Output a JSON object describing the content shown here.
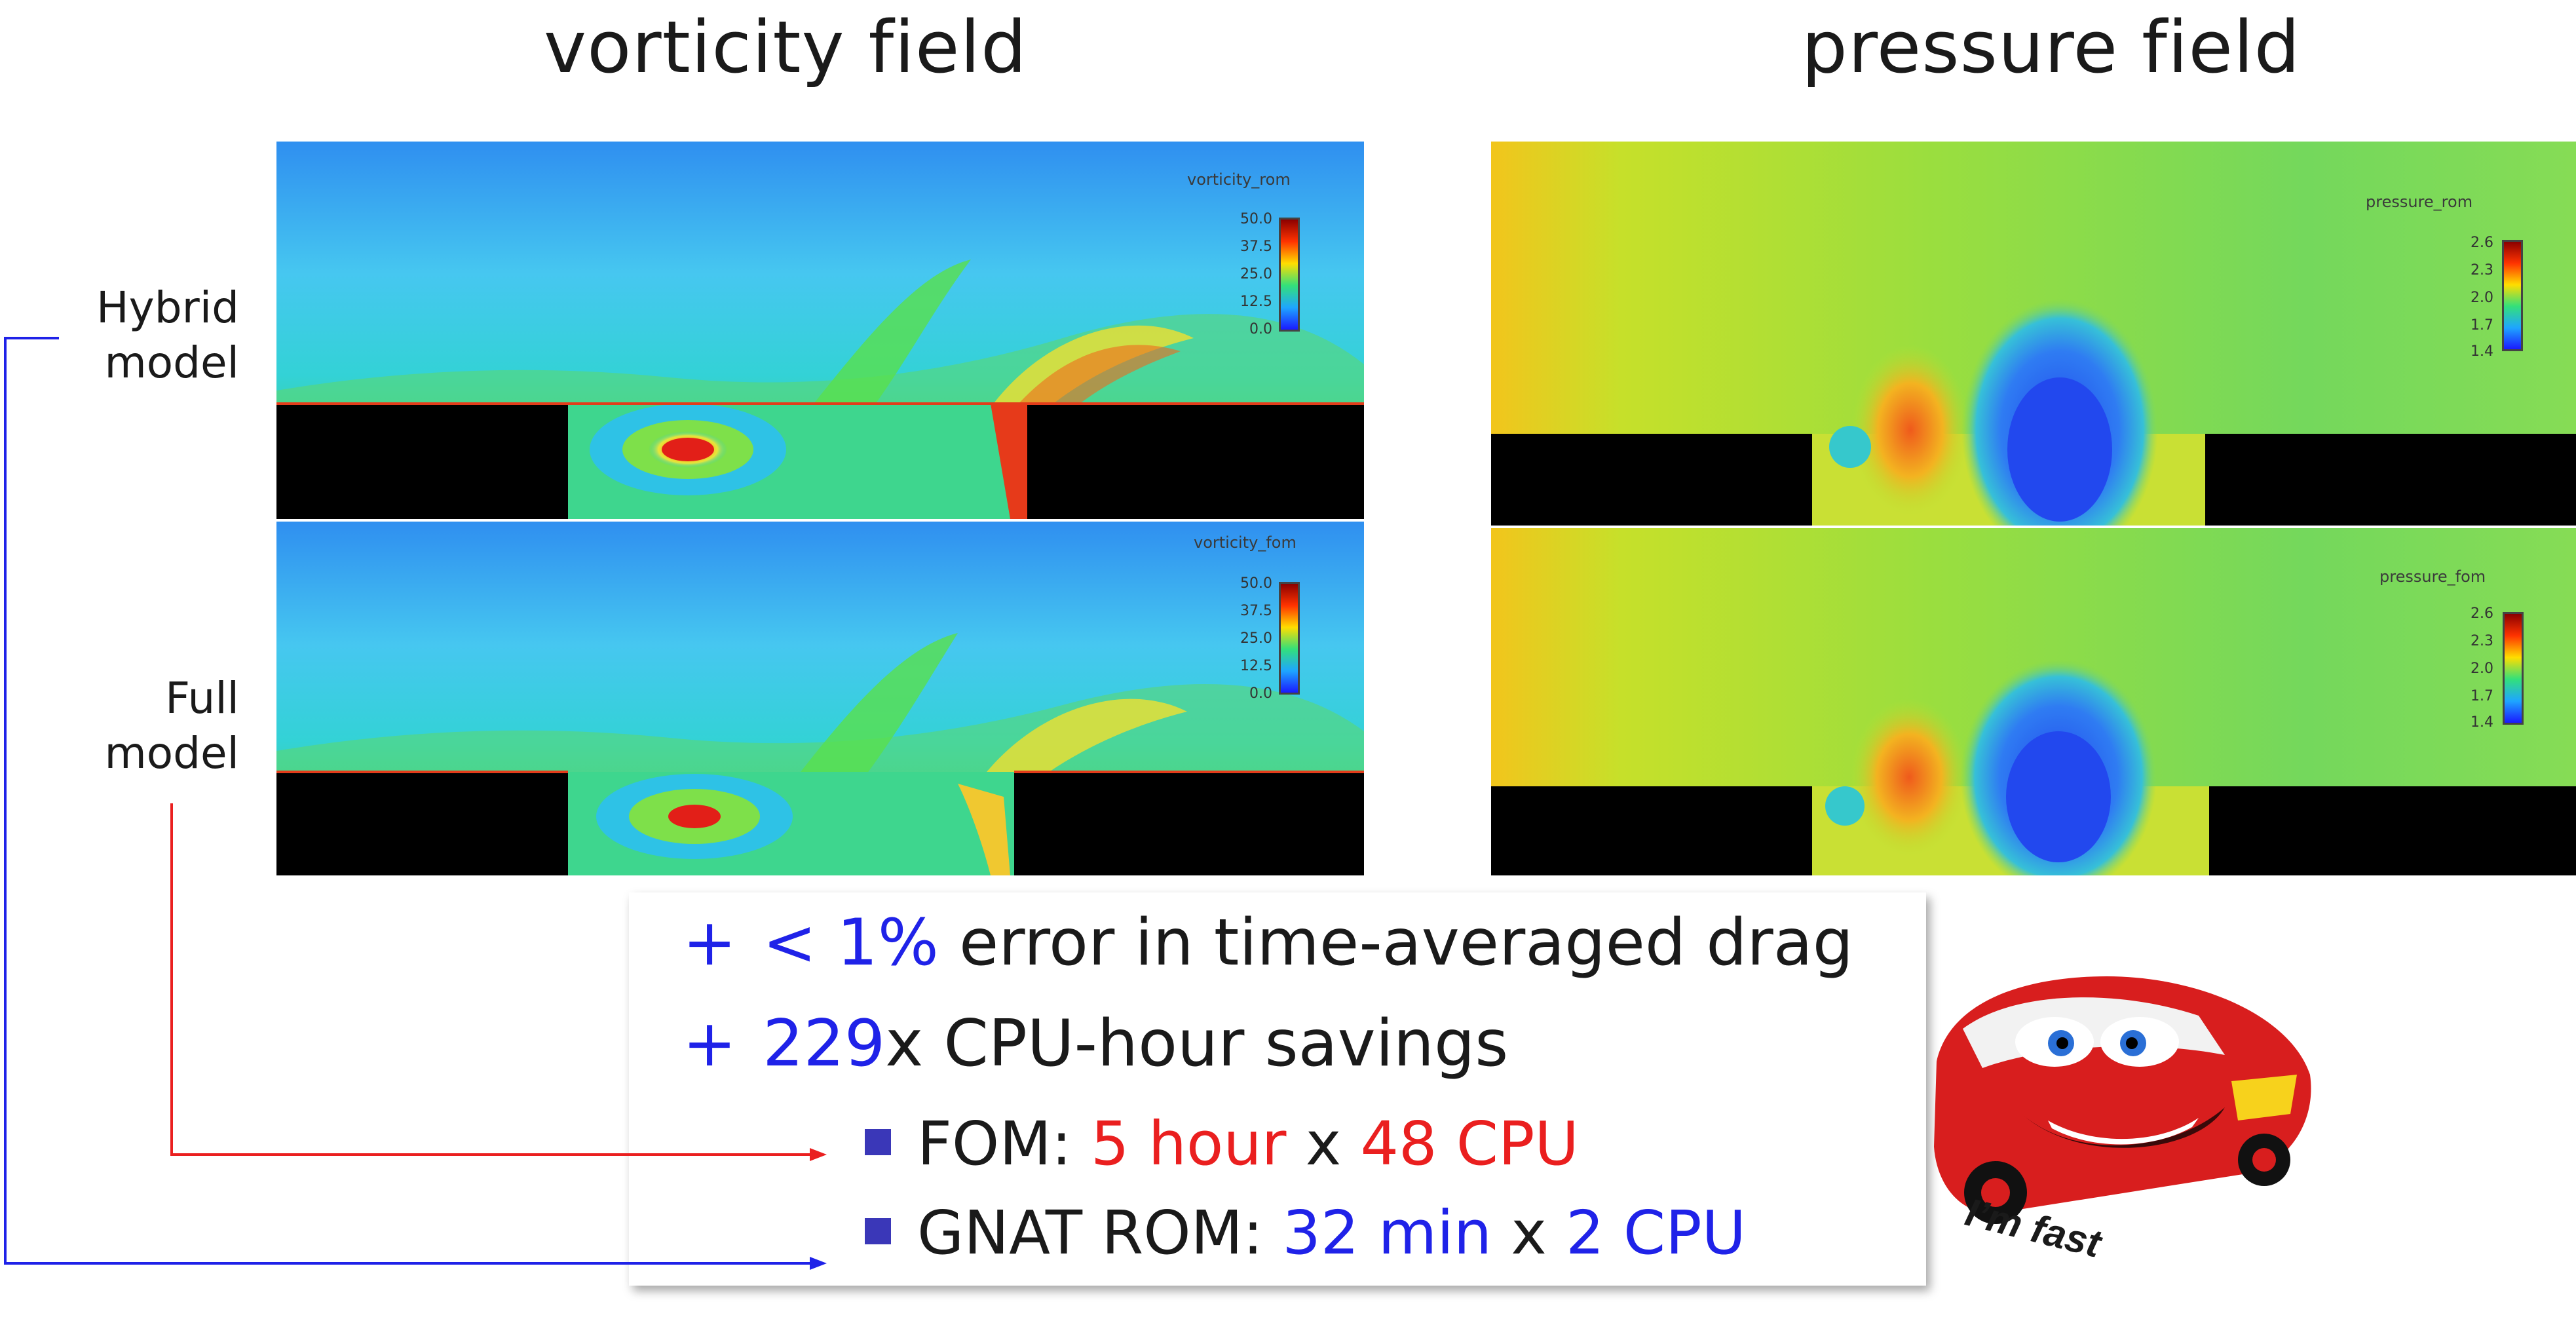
{
  "titles": {
    "left": "vorticity field",
    "right": "pressure field"
  },
  "row_labels": {
    "hybrid": [
      "Hybrid",
      "model"
    ],
    "full": [
      "Full",
      "model"
    ]
  },
  "colorbars": {
    "vorticity_rom": {
      "title": "vorticity_rom",
      "ticks": [
        "50.0",
        "37.5",
        "25.0",
        "12.5",
        "0.0"
      ]
    },
    "vorticity_fom": {
      "title": "vorticity_fom",
      "ticks": [
        "50.0",
        "37.5",
        "25.0",
        "12.5",
        "0.0"
      ]
    },
    "pressure_rom": {
      "title": "pressure_rom",
      "ticks": [
        "2.6",
        "2.3",
        "2.0",
        "1.7",
        "1.4"
      ]
    },
    "pressure_fom": {
      "title": "pressure_fom",
      "ticks": [
        "2.6",
        "2.3",
        "2.0",
        "1.7",
        "1.4"
      ]
    }
  },
  "summary": {
    "plus_symbol": "+",
    "line1": {
      "highlight": "< 1%",
      "rest": "error in time-averaged drag"
    },
    "line2": {
      "highlight": "229",
      "rest": "x CPU-hour savings"
    },
    "fom": {
      "label": "FOM:",
      "time": "5 hour",
      "times": "x",
      "cpu": "48 CPU"
    },
    "rom": {
      "label": "GNAT ROM:",
      "time": "32 min",
      "times": "x",
      "cpu": "2 CPU"
    }
  },
  "caption": "I’m fast",
  "colors": {
    "blue_text": "#1f22e8",
    "red_text": "#ea1f1f",
    "arrow_blue": "#1f22e8",
    "arrow_red": "#ea1f1f"
  }
}
